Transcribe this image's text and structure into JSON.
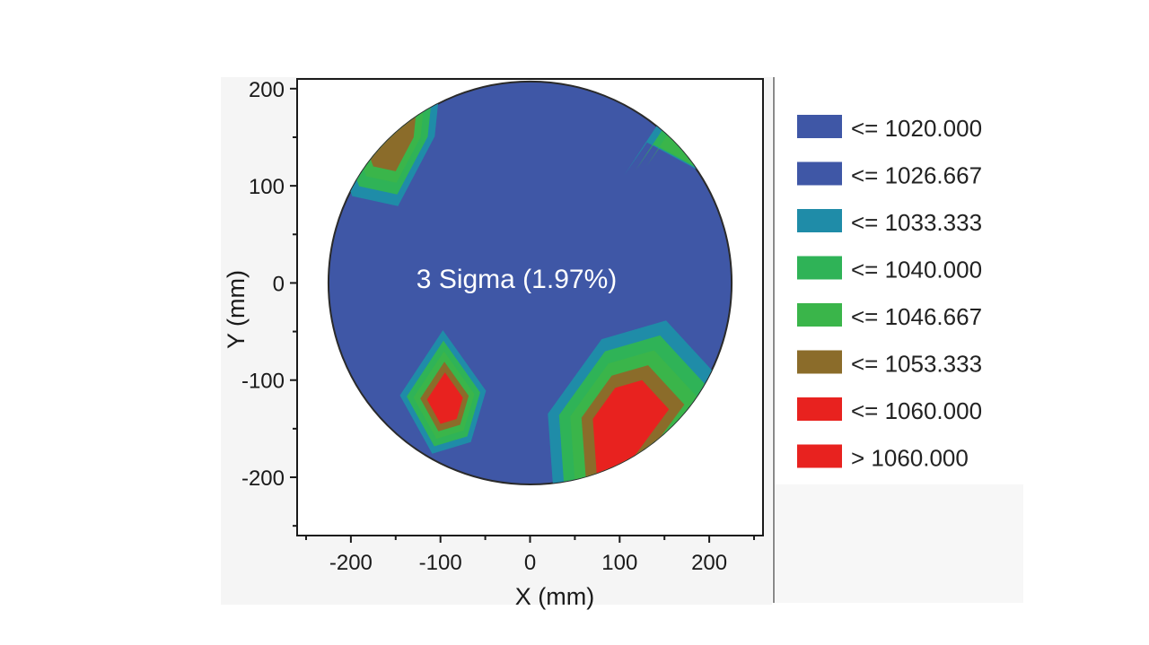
{
  "chart_data": {
    "type": "heatmap",
    "title": "",
    "xlabel": "X (mm)",
    "ylabel": "Y (mm)",
    "xlim": [
      -260,
      260
    ],
    "ylim": [
      -260,
      210
    ],
    "x_ticks": [
      -200,
      -100,
      0,
      100,
      200
    ],
    "y_ticks": [
      200,
      100,
      0,
      -100,
      -200
    ],
    "x_tick_labels": [
      "-200",
      "-100",
      "0",
      "100",
      "200"
    ],
    "y_tick_labels": [
      "200",
      "100",
      "0",
      "-100",
      "-200"
    ],
    "wafer_radius": 225,
    "annotation": "3 Sigma (1.97%)",
    "legend_position": "right",
    "legend": [
      {
        "label": "<= 1020.000",
        "color": "#3f57a6"
      },
      {
        "label": "<= 1026.667",
        "color": "#3f57a6"
      },
      {
        "label": "<= 1033.333",
        "color": "#1f8ca8"
      },
      {
        "label": "<= 1040.000",
        "color": "#2fb357"
      },
      {
        "label": "<= 1046.667",
        "color": "#3ab54a"
      },
      {
        "label": "<= 1053.333",
        "color": "#8b6c2a"
      },
      {
        "label": "<= 1060.000",
        "color": "#e8221f"
      },
      {
        "label": "> 1060.000",
        "color": "#e8221f"
      }
    ],
    "regions": [
      {
        "name": "top-left-edge",
        "level": 5,
        "points": [
          [
            -175,
            120
          ],
          [
            -185,
            145
          ],
          [
            -150,
            170
          ],
          [
            -125,
            195
          ],
          [
            -130,
            150
          ],
          [
            -150,
            115
          ]
        ]
      },
      {
        "name": "top-right-edge",
        "level": 4,
        "points": [
          [
            130,
            120
          ],
          [
            145,
            140
          ],
          [
            175,
            125
          ],
          [
            205,
            110
          ],
          [
            185,
            150
          ],
          [
            155,
            155
          ]
        ]
      },
      {
        "name": "bottom-left-spot",
        "level": 6,
        "points": [
          [
            -115,
            -120
          ],
          [
            -95,
            -92
          ],
          [
            -75,
            -118
          ],
          [
            -82,
            -140
          ],
          [
            -100,
            -145
          ]
        ]
      },
      {
        "name": "bottom-right-spot",
        "level": 6,
        "points": [
          [
            70,
            -140
          ],
          [
            95,
            -108
          ],
          [
            125,
            -100
          ],
          [
            155,
            -130
          ],
          [
            115,
            -180
          ],
          [
            75,
            -205
          ]
        ]
      }
    ]
  }
}
